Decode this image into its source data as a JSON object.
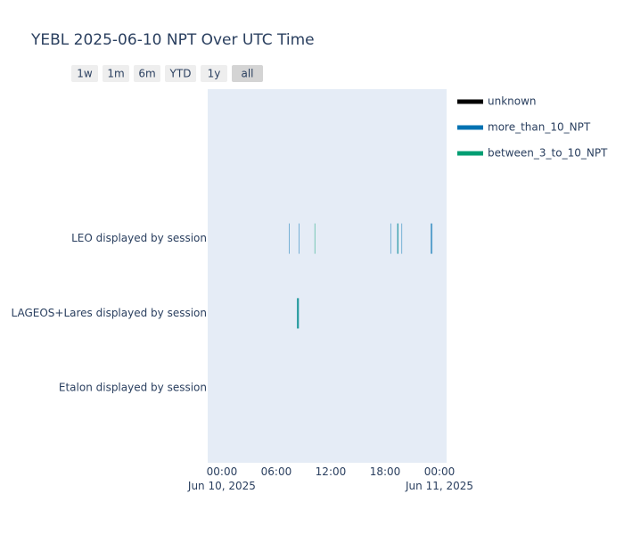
{
  "chart_data": {
    "type": "timeline",
    "title": "YEBL 2025-06-10 NPT Over UTC Time",
    "range_buttons": [
      "1w",
      "1m",
      "6m",
      "YTD",
      "1y",
      "all"
    ],
    "active_button": "all",
    "categories": [
      "Etalon displayed by session",
      "LAGEOS+Lares displayed by session",
      "LEO displayed by session"
    ],
    "xlim": [
      "2025-06-09T22:26",
      "2025-06-11T00:47"
    ],
    "xticks": [
      {
        "value": "2025-06-10T00:00",
        "label": "00:00\nJun 10, 2025"
      },
      {
        "value": "2025-06-10T06:00",
        "label": "06:00"
      },
      {
        "value": "2025-06-10T12:00",
        "label": "12:00"
      },
      {
        "value": "2025-06-10T18:00",
        "label": "18:00"
      },
      {
        "value": "2025-06-11T00:00",
        "label": "00:00\nJun 11, 2025"
      }
    ],
    "series": [
      {
        "name": "unknown",
        "color": "#000000",
        "category": [],
        "start": [],
        "end": []
      },
      {
        "name": "more_than_10_NPT",
        "color": "#0072b2",
        "category": [
          "LEO displayed by session",
          "LEO displayed by session",
          "LEO displayed by session",
          "LEO displayed by session",
          "LEO displayed by session",
          "LEO displayed by session",
          "LAGEOS+Lares displayed by session"
        ],
        "start": [
          "2025-06-10T07:23",
          "2025-06-10T08:28",
          "2025-06-10T18:35",
          "2025-06-10T19:20",
          "2025-06-10T19:48",
          "2025-06-10T23:01",
          "2025-06-10T08:16"
        ],
        "end": [
          "2025-06-10T07:25",
          "2025-06-10T08:29",
          "2025-06-10T18:37",
          "2025-06-10T19:28",
          "2025-06-10T19:50",
          "2025-06-10T23:13",
          "2025-06-10T08:30"
        ]
      },
      {
        "name": "between_3_to_10_NPT",
        "color": "#009e73",
        "category": [
          "LEO displayed by session",
          "LAGEOS+Lares displayed by session",
          "LEO displayed by session"
        ],
        "start": [
          "2025-06-10T10:13",
          "2025-06-10T08:18",
          "2025-06-10T19:22"
        ],
        "end": [
          "2025-06-10T10:15",
          "2025-06-10T08:28",
          "2025-06-10T19:24"
        ]
      }
    ]
  }
}
